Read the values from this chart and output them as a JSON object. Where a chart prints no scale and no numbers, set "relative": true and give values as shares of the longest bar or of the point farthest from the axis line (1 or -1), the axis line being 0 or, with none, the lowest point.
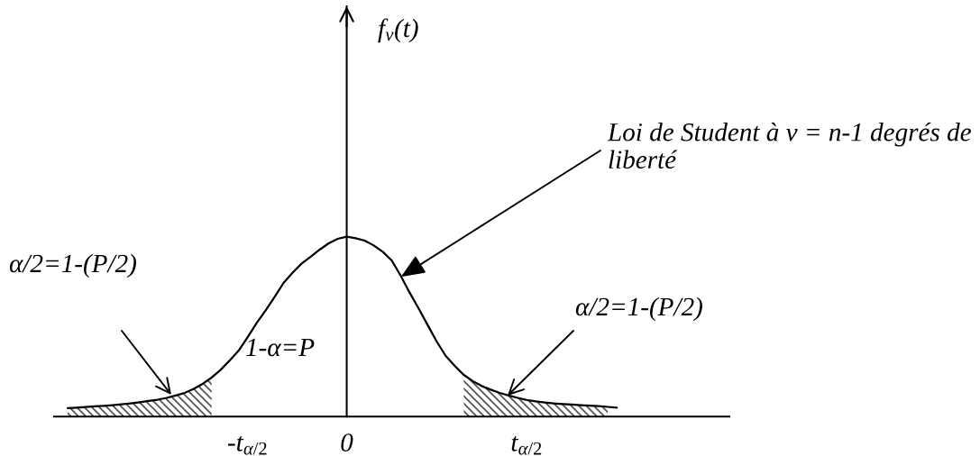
{
  "chart_data": {
    "type": "line",
    "relative": true,
    "line_style": "solid",
    "categories": [
      null,
      null,
      null,
      null,
      null,
      null,
      null,
      null,
      null,
      null,
      null,
      null,
      null,
      null,
      null,
      null,
      null,
      null,
      null,
      null,
      null,
      "-t$_{α/2}$",
      null,
      null,
      null,
      null,
      null,
      null,
      null,
      null,
      null,
      null,
      "0",
      null,
      null,
      null,
      null,
      null,
      null,
      null,
      null,
      null,
      null,
      null,
      null,
      null,
      null,
      null,
      null,
      null,
      null,
      null,
      "t$_{α/2}$",
      null,
      null,
      null,
      null,
      null,
      null,
      null,
      null,
      null,
      null,
      null,
      null,
      null,
      null,
      null,
      null,
      null,
      null,
      null,
      null,
      null,
      null
    ],
    "series": [
      {
        "color": "#000000",
        "values": [
          null,
          0.047,
          0.05,
          0.053,
          0.057,
          0.06,
          0.064,
          0.069,
          0.074,
          0.08,
          0.087,
          0.094,
          0.104,
          0.117,
          0.132,
          0.154,
          0.182,
          0.217,
          0.26,
          0.312,
          0.367,
          0.442,
          0.52,
          0.591,
          0.666,
          0.744,
          0.8,
          0.851,
          0.888,
          0.928,
          0.963,
          0.988,
          1.0,
          0.991,
          0.978,
          0.951,
          0.916,
          0.868,
          0.783,
          0.688,
          0.6,
          0.508,
          0.417,
          0.337,
          0.282,
          0.232,
          0.197,
          0.17,
          0.15,
          0.132,
          0.117,
          0.104,
          0.092,
          0.085,
          0.079,
          0.073,
          0.07,
          0.067,
          0.064,
          0.061,
          0.058,
          0.054,
          0.05,
          null,
          null,
          null,
          null,
          null,
          null,
          null,
          null,
          null,
          null,
          null,
          null
        ]
      },
      {
        "type": "area",
        "color": "#555555",
        "values": [
          null,
          0.047,
          0.05,
          0.053,
          0.057,
          0.06,
          0.064,
          0.069,
          0.074,
          0.08,
          0.087,
          0.094,
          0.104,
          0.117,
          0.132,
          0.154,
          0.182,
          0.217,
          null,
          null,
          null,
          null,
          null,
          null,
          null,
          null,
          null,
          null,
          null,
          null,
          null,
          null,
          null,
          null,
          null,
          null,
          null,
          null,
          null,
          null,
          null,
          null,
          null,
          null,
          null,
          null,
          null,
          null,
          null,
          null,
          null,
          null,
          null,
          null,
          null,
          null,
          null,
          null,
          null,
          null,
          null,
          null,
          null,
          null,
          null,
          null,
          null,
          null,
          null,
          null,
          null,
          null,
          null,
          null,
          null
        ]
      },
      {
        "type": "area",
        "color": "#555555",
        "values": [
          null,
          null,
          null,
          null,
          null,
          null,
          null,
          null,
          null,
          null,
          null,
          null,
          null,
          null,
          null,
          null,
          null,
          null,
          null,
          null,
          null,
          null,
          null,
          null,
          null,
          null,
          null,
          null,
          null,
          null,
          null,
          null,
          null,
          null,
          null,
          null,
          null,
          null,
          null,
          null,
          null,
          null,
          null,
          null,
          null,
          0.232,
          0.197,
          0.17,
          0.15,
          0.132,
          0.117,
          0.104,
          0.092,
          0.085,
          0.079,
          0.073,
          0.07,
          0.067,
          0.064,
          0.061,
          0.058,
          0.054,
          null,
          null,
          null,
          null,
          null,
          null,
          null,
          null,
          null,
          null,
          null,
          null,
          null
        ]
      }
    ],
    "annotations": [
      "f$_{ν}$(t)",
      "Loi de Student à ν = n-1 degrés de\nliberté",
      "α/2=1-(P/2)",
      "1-α=P",
      "α/2=1-(P/2)"
    ]
  }
}
